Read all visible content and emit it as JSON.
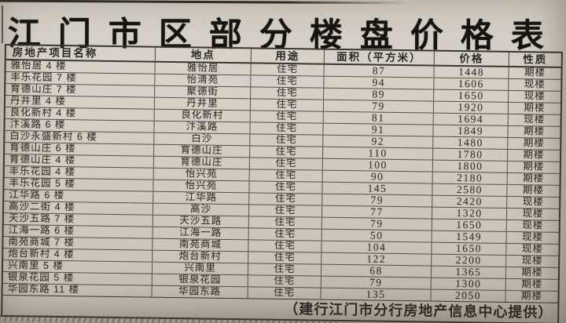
{
  "page": {
    "title": "江门市区部分楼盘价格表",
    "source_note": "（建行江门市分行房地产信息中心提供）"
  },
  "table": {
    "columns": [
      "房地产项目名称",
      "地点",
      "用途",
      "面积（平方米）",
      "价格",
      "性质"
    ],
    "rows": [
      {
        "name": "雅怡居 4 楼",
        "location": "雅怡居",
        "use": "住宅",
        "area": "87",
        "price": "1448",
        "status": "期楼"
      },
      {
        "name": "丰乐花园 7 楼",
        "location": "怡清苑",
        "use": "住宅",
        "area": "94",
        "price": "1606",
        "status": "现楼"
      },
      {
        "name": "育德山庄 7 楼",
        "location": "聚德街",
        "use": "住宅",
        "area": "89",
        "price": "1650",
        "status": "现楼"
      },
      {
        "name": "丹井里 4 楼",
        "location": "丹井里",
        "use": "住宅",
        "area": "79",
        "price": "1920",
        "status": "期楼"
      },
      {
        "name": "良化新村 4 楼",
        "location": "良化新村",
        "use": "住宅",
        "area": "81",
        "price": "1694",
        "status": "现楼"
      },
      {
        "name": "汴溪路 6 楼",
        "location": "汴溪路",
        "use": "住宅",
        "area": "91",
        "price": "1849",
        "status": "期楼"
      },
      {
        "name": "白沙永盛新村 6 楼",
        "location": "白沙",
        "use": "住宅",
        "area": "92",
        "price": "1480",
        "status": "期楼"
      },
      {
        "name": "育德山庄 6 楼",
        "location": "育德山庄",
        "use": "住宅",
        "area": "110",
        "price": "1780",
        "status": "期楼"
      },
      {
        "name": "育德山庄 4 楼",
        "location": "育德山庄",
        "use": "住宅",
        "area": "100",
        "price": "1800",
        "status": "期楼"
      },
      {
        "name": "丰乐花园 4 楼",
        "location": "怡兴苑",
        "use": "住宅",
        "area": "90",
        "price": "2180",
        "status": "期楼"
      },
      {
        "name": "丰乐花园 5 楼",
        "location": "怡兴苑",
        "use": "住宅",
        "area": "145",
        "price": "2580",
        "status": "期楼"
      },
      {
        "name": "江华路 6 楼",
        "location": "江华路",
        "use": "住宅",
        "area": "79",
        "price": "2420",
        "status": "现楼"
      },
      {
        "name": "高沙二街 4 楼",
        "location": "高沙",
        "use": "住宅",
        "area": "77",
        "price": "1320",
        "status": "现楼"
      },
      {
        "name": "天沙五路 7 楼",
        "location": "天沙五路",
        "use": "住宅",
        "area": "79",
        "price": "1650",
        "status": "现楼"
      },
      {
        "name": "江海一路 6 楼",
        "location": "江海一路",
        "use": "住宅",
        "area": "50",
        "price": "1549",
        "status": "现楼"
      },
      {
        "name": "南苑商城 7 楼",
        "location": "南苑商城",
        "use": "住宅",
        "area": "104",
        "price": "1650",
        "status": "现楼"
      },
      {
        "name": "炮台新村 4 楼",
        "location": "炮台新村",
        "use": "住宅",
        "area": "122",
        "price": "2200",
        "status": "现楼"
      },
      {
        "name": "兴南里 5 楼",
        "location": "兴南里",
        "use": "住宅",
        "area": "68",
        "price": "1365",
        "status": "期楼"
      },
      {
        "name": "银泉花园 5 楼",
        "location": "银泉花园",
        "use": "住宅",
        "area": "79",
        "price": "1300",
        "status": "期楼"
      },
      {
        "name": "华园东路 11 楼",
        "location": "华园东路",
        "use": "住宅",
        "area": "135",
        "price": "2050",
        "status": "期楼"
      }
    ]
  },
  "colors": {
    "paper": "#d5cfc6",
    "ink": "#37322b",
    "border": "#3b362f"
  }
}
